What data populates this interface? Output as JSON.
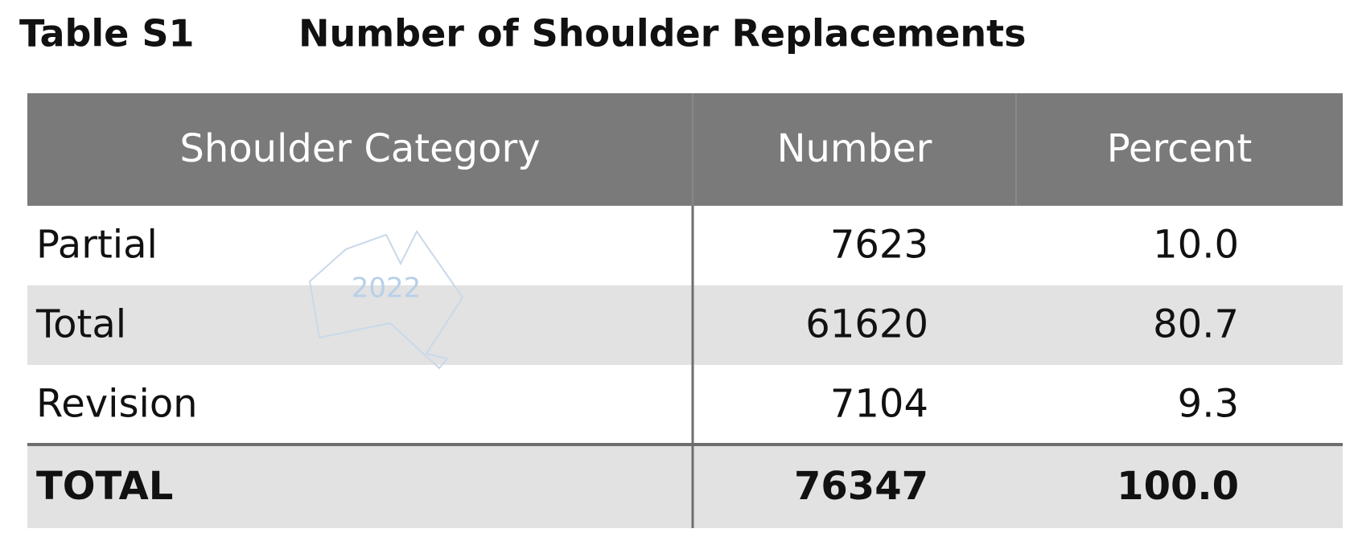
{
  "header": {
    "label": "Table S1",
    "title": "Number of Shoulder Replacements"
  },
  "table": {
    "columns": [
      "Shoulder Category",
      "Number",
      "Percent"
    ],
    "rows": [
      [
        "Partial",
        "7623",
        "10.0"
      ],
      [
        "Total",
        "61620",
        "80.7"
      ],
      [
        "Revision",
        "7104",
        "9.3"
      ]
    ],
    "total": [
      "TOTAL",
      "76347",
      "100.0"
    ]
  },
  "watermark": "2022"
}
